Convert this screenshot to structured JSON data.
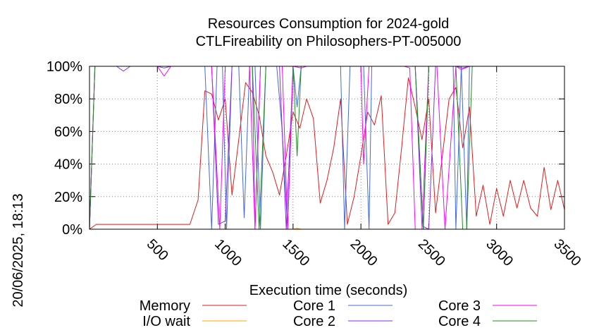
{
  "chart_data": {
    "type": "line",
    "title": "Resources Consumption for 2024-gold",
    "subtitle": "CTLFireability on Philosophers-PT-005000",
    "xlabel": "Execution time (seconds)",
    "ylabel": "",
    "side_label": "20/06/2025, 18:13",
    "xlim": [
      0,
      3500
    ],
    "ylim": [
      0,
      100
    ],
    "x_ticks": [
      500,
      1000,
      1500,
      2000,
      2500,
      3000,
      3500
    ],
    "x_tick_labels": [
      "500",
      "1000",
      "1500",
      "2000",
      "2500",
      "3000",
      "3500"
    ],
    "y_ticks": [
      0,
      20,
      40,
      60,
      80,
      100
    ],
    "y_tick_labels": [
      "0%",
      "20%",
      "40%",
      "60%",
      "80%",
      "100%"
    ],
    "grid": true,
    "legend_position": "bottom",
    "series": [
      {
        "name": "Memory",
        "color": "#e41a1c",
        "x": [
          0,
          50,
          200,
          400,
          600,
          700,
          740,
          800,
          850,
          900,
          950,
          1000,
          1050,
          1100,
          1150,
          1200,
          1250,
          1300,
          1350,
          1400,
          1450,
          1500,
          1550,
          1600,
          1650,
          1700,
          1750,
          1800,
          1850,
          1900,
          1950,
          2000,
          2050,
          2100,
          2150,
          2200,
          2250,
          2300,
          2350,
          2400,
          2450,
          2500,
          2550,
          2600,
          2650,
          2700,
          2750,
          2800,
          2850,
          2900,
          2950,
          3000,
          3050,
          3100,
          3150,
          3200,
          3250,
          3300,
          3350,
          3400,
          3450,
          3500
        ],
        "y": [
          0,
          3,
          3,
          3,
          3,
          3,
          3,
          18,
          85,
          83,
          67,
          80,
          21,
          55,
          90,
          84,
          70,
          45,
          35,
          21,
          45,
          72,
          62,
          80,
          68,
          16,
          30,
          50,
          80,
          3,
          20,
          45,
          72,
          64,
          82,
          3,
          10,
          50,
          93,
          75,
          55,
          80,
          10,
          45,
          80,
          87,
          50,
          75,
          8,
          27,
          3,
          25,
          8,
          30,
          13,
          30,
          13,
          8,
          38,
          12,
          30,
          12
        ]
      },
      {
        "name": "I/O wait",
        "color": "#ffa500",
        "x": [
          0,
          1500,
          1530,
          1560,
          3500
        ],
        "y": [
          0,
          0,
          0.5,
          0,
          0
        ]
      },
      {
        "name": "Core 1",
        "color": "#4169e1",
        "x": [
          0,
          40,
          850,
          900,
          940,
          980,
          1010,
          1050,
          1100,
          1140,
          1180,
          1220,
          1260,
          1300,
          1350,
          1380,
          1420,
          1460,
          1500,
          1530,
          1560,
          1600,
          1650,
          1700,
          1750,
          1800,
          1850,
          1880,
          1920,
          1980,
          2020,
          2060,
          2080,
          2120,
          2160,
          2220,
          2300,
          2400,
          2460,
          2500,
          2560,
          2620,
          2680,
          2700,
          2740,
          2780,
          2800,
          3500
        ],
        "y": [
          0,
          100,
          100,
          0,
          100,
          100,
          0,
          100,
          100,
          7,
          100,
          100,
          0,
          100,
          100,
          100,
          60,
          0,
          100,
          75,
          100,
          100,
          100,
          100,
          100,
          100,
          100,
          0,
          100,
          100,
          100,
          0,
          100,
          100,
          100,
          100,
          100,
          100,
          0,
          100,
          100,
          100,
          100,
          0,
          100,
          0,
          100,
          100
        ]
      },
      {
        "name": "Core 2",
        "color": "#8a2be2",
        "x": [
          0,
          40,
          200,
          250,
          300,
          500,
          550,
          600,
          850,
          900,
          950,
          1000,
          1050,
          1100,
          1150,
          1200,
          1220,
          1260,
          1300,
          1400,
          1450,
          1500,
          1550,
          1600,
          1650,
          1700,
          1800,
          1900,
          2000,
          2100,
          2200,
          2300,
          2400,
          2450,
          2500,
          2550,
          2600,
          2650,
          2700,
          2750,
          2800,
          3500
        ],
        "y": [
          0,
          100,
          100,
          97,
          100,
          100,
          99,
          100,
          100,
          100,
          3,
          5,
          100,
          100,
          100,
          100,
          0,
          100,
          100,
          100,
          0,
          100,
          100,
          100,
          100,
          100,
          100,
          100,
          100,
          100,
          100,
          100,
          100,
          2,
          0,
          100,
          100,
          100,
          100,
          99,
          100,
          100
        ]
      },
      {
        "name": "Core 3",
        "color": "#ff00ff",
        "x": [
          0,
          40,
          500,
          550,
          600,
          900,
          960,
          1000,
          1180,
          1220,
          1260,
          1300,
          1420,
          1460,
          1500,
          1560,
          1600,
          2000,
          2020,
          2060,
          2100,
          2160,
          2200,
          2320,
          2360,
          2400,
          2450,
          2500,
          2560,
          2620,
          2700,
          2740,
          2800,
          3500
        ],
        "y": [
          0,
          100,
          100,
          94,
          100,
          100,
          0,
          100,
          100,
          0,
          100,
          100,
          100,
          0,
          100,
          99,
          100,
          100,
          40,
          100,
          100,
          100,
          100,
          100,
          99,
          0,
          0,
          100,
          100,
          0,
          100,
          98,
          100,
          100
        ]
      },
      {
        "name": "Core 4",
        "color": "#228b22",
        "x": [
          0,
          40,
          800,
          850,
          900,
          950,
          1000,
          1050,
          1100,
          1150,
          1200,
          1250,
          1300,
          1350,
          1400,
          1450,
          1500,
          1530,
          1560,
          1600,
          1650,
          1700,
          1750,
          1800,
          1850,
          1900,
          1950,
          2000,
          2100,
          2200,
          2300,
          2400,
          2460,
          2500,
          2560,
          2620,
          2700,
          2750,
          2780,
          2820,
          3500
        ],
        "y": [
          0,
          100,
          100,
          100,
          100,
          100,
          100,
          100,
          100,
          100,
          100,
          0,
          100,
          100,
          100,
          100,
          100,
          45,
          100,
          100,
          100,
          100,
          100,
          100,
          100,
          100,
          100,
          100,
          100,
          100,
          100,
          100,
          0,
          100,
          100,
          100,
          100,
          0,
          0,
          100,
          100
        ]
      }
    ]
  }
}
